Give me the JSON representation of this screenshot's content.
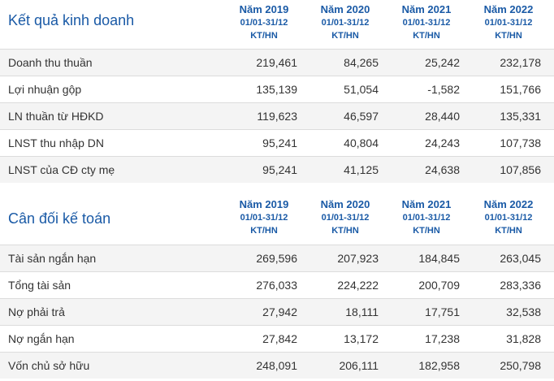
{
  "columns": [
    {
      "year": "Năm 2019",
      "period": "01/01-31/12",
      "audit": "KT/HN"
    },
    {
      "year": "Năm 2020",
      "period": "01/01-31/12",
      "audit": "KT/HN"
    },
    {
      "year": "Năm 2021",
      "period": "01/01-31/12",
      "audit": "KT/HN"
    },
    {
      "year": "Năm 2022",
      "period": "01/01-31/12",
      "audit": "KT/HN"
    }
  ],
  "income": {
    "title": "Kết quả kinh doanh",
    "rows": [
      {
        "label": "Doanh thu thuần",
        "values": [
          "219,461",
          "84,265",
          "25,242",
          "232,178"
        ]
      },
      {
        "label": "Lợi nhuận gộp",
        "values": [
          "135,139",
          "51,054",
          "-1,582",
          "151,766"
        ]
      },
      {
        "label": "LN thuần từ HĐKD",
        "values": [
          "119,623",
          "46,597",
          "28,440",
          "135,331"
        ]
      },
      {
        "label": "LNST thu nhập DN",
        "values": [
          "95,241",
          "40,804",
          "24,243",
          "107,738"
        ]
      },
      {
        "label": "LNST của CĐ cty mẹ",
        "values": [
          "95,241",
          "41,125",
          "24,638",
          "107,856"
        ]
      }
    ]
  },
  "balance": {
    "title": "Cân đối kế toán",
    "rows": [
      {
        "label": "Tài sản ngắn hạn",
        "values": [
          "269,596",
          "207,923",
          "184,845",
          "263,045"
        ]
      },
      {
        "label": "Tổng tài sản",
        "values": [
          "276,033",
          "224,222",
          "200,709",
          "283,336"
        ]
      },
      {
        "label": "Nợ phải trả",
        "values": [
          "27,942",
          "18,111",
          "17,751",
          "32,538"
        ]
      },
      {
        "label": "Nợ ngắn hạn",
        "values": [
          "27,842",
          "13,172",
          "17,238",
          "31,828"
        ]
      },
      {
        "label": "Vốn chủ sở hữu",
        "values": [
          "248,091",
          "206,111",
          "182,958",
          "250,798"
        ]
      }
    ]
  }
}
